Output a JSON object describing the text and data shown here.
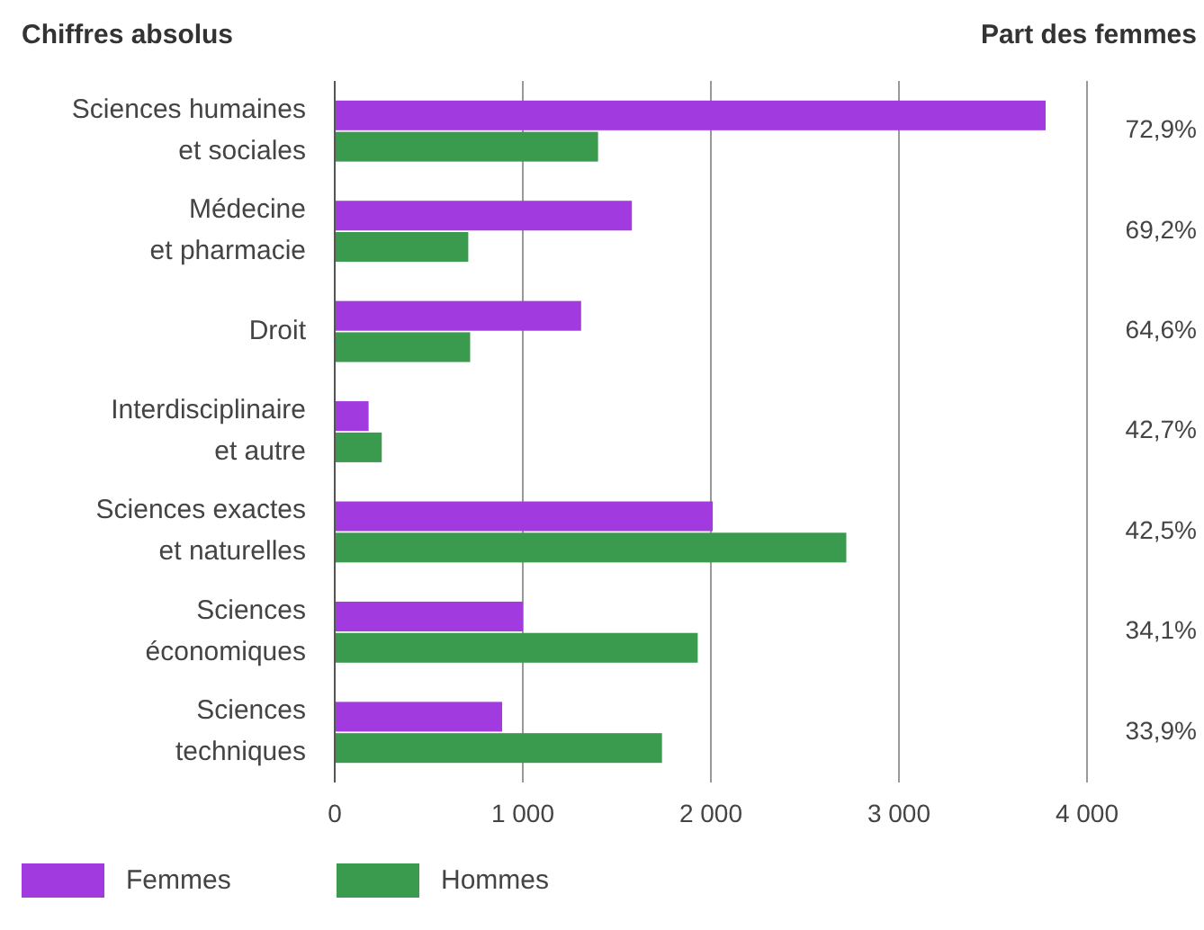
{
  "chart_data": {
    "type": "bar",
    "orientation": "horizontal",
    "title": "Chiffres absolus",
    "y2label": "Part des femmes",
    "categories": [
      "Sciences humaines\net sociales",
      "Médecine\net pharmacie",
      "Droit",
      "Interdisciplinaire\net autre",
      "Sciences exactes\net naturelles",
      "Sciences\néconomiques",
      "Sciences\ntechniques"
    ],
    "series": [
      {
        "name": "Femmes",
        "color": "#a13be0",
        "values": [
          3780,
          1580,
          1310,
          180,
          2010,
          1000,
          890
        ]
      },
      {
        "name": "Hommes",
        "color": "#3a9a4e",
        "values": [
          1400,
          710,
          720,
          250,
          2720,
          1930,
          1740
        ]
      }
    ],
    "xlim": [
      0,
      4000
    ],
    "xticks": [
      0,
      {
        "value": 1000,
        "label": "1 000"
      },
      {
        "value": 2000,
        "label": "2 000"
      },
      {
        "value": 3000,
        "label": "3 000"
      },
      {
        "value": 4000,
        "label": "4 000"
      }
    ],
    "grid": "x",
    "legend": "bottom left",
    "annotations": [
      "72,9%",
      "69,2%",
      "64,6%",
      "42,7%",
      "42,5%",
      "34,1%",
      "33,9%"
    ]
  }
}
